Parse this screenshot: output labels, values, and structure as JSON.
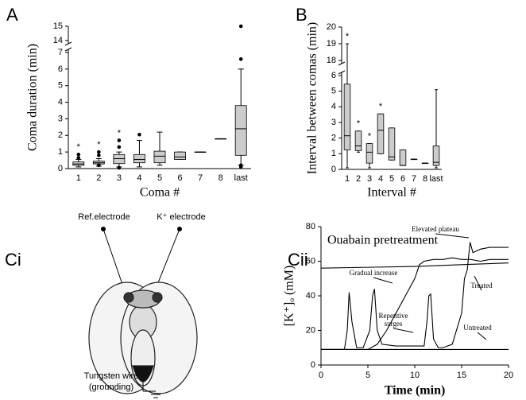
{
  "chart_data": [
    {
      "type": "box",
      "panel": "A",
      "ylabel": "Coma duration (min)",
      "xlabel": "Coma #",
      "categories": [
        "1",
        "2",
        "3",
        "4",
        "5",
        "6",
        "7",
        "8",
        "last"
      ],
      "boxes": [
        {
          "min": 0.1,
          "q1": 0.2,
          "median": 0.28,
          "q3": 0.4,
          "max": 0.55,
          "outliers": [
            0.85,
            0.65
          ]
        },
        {
          "min": 0.15,
          "q1": 0.28,
          "median": 0.35,
          "q3": 0.45,
          "max": 0.6,
          "outliers": [
            1.0,
            0.8,
            0.2
          ]
        },
        {
          "min": 0.1,
          "q1": 0.3,
          "median": 0.6,
          "q3": 0.85,
          "max": 1.0,
          "outliers": [
            1.7,
            1.3,
            0.05
          ]
        },
        {
          "min": 0.1,
          "q1": 0.35,
          "median": 0.55,
          "q3": 0.85,
          "max": 1.7,
          "outliers": [
            2.05
          ]
        },
        {
          "min": 0.2,
          "q1": 0.35,
          "median": 0.75,
          "q3": 1.05,
          "max": 2.2,
          "outliers": []
        },
        {
          "min": 0.55,
          "q1": 0.55,
          "median": 0.7,
          "q3": 1.0,
          "max": 1.0,
          "outliers": []
        },
        {
          "min": 1.0,
          "q1": 1.0,
          "median": 1.0,
          "q3": 1.0,
          "max": 1.0,
          "outliers": []
        },
        {
          "min": 1.8,
          "q1": 1.8,
          "median": 1.8,
          "q3": 1.8,
          "max": 1.8,
          "outliers": []
        },
        {
          "min": 0.2,
          "q1": 0.8,
          "median": 2.4,
          "q3": 3.8,
          "max": 6.0,
          "outliers": [
            15,
            6.6,
            0.2,
            0.1
          ]
        }
      ],
      "significance": [
        "*",
        "*",
        "*",
        null,
        null,
        null,
        null,
        null,
        null
      ],
      "color": "#cccccc",
      "ylim": [
        0,
        15
      ],
      "ybreak": [
        7,
        14
      ],
      "yticks": [
        0,
        1,
        2,
        3,
        4,
        5,
        6,
        7,
        14,
        15
      ]
    },
    {
      "type": "box",
      "panel": "B",
      "ylabel": "Interval between comas (min)",
      "xlabel": "Interval #",
      "categories": [
        "1",
        "2",
        "3",
        "4",
        "5",
        "6",
        "7",
        "8",
        "last"
      ],
      "boxes": [
        {
          "min": 0.1,
          "q1": 1.25,
          "median": 2.15,
          "q3": 5.45,
          "max": 19.0,
          "outliers": []
        },
        {
          "min": 1.1,
          "q1": 1.2,
          "median": 1.5,
          "q3": 2.45,
          "max": 2.45,
          "outliers": []
        },
        {
          "min": 0.1,
          "q1": 0.4,
          "median": 1.1,
          "q3": 1.65,
          "max": 1.65,
          "outliers": []
        },
        {
          "min": 1.0,
          "q1": 1.0,
          "median": 2.5,
          "q3": 3.55,
          "max": 3.55,
          "outliers": []
        },
        {
          "min": 0.6,
          "q1": 0.6,
          "median": 0.8,
          "q3": 2.65,
          "max": 2.65,
          "outliers": []
        },
        {
          "min": 0.25,
          "q1": 0.25,
          "median": 0.25,
          "q3": 1.25,
          "max": 1.25,
          "outliers": []
        },
        {
          "min": 0.65,
          "q1": 0.65,
          "median": 0.65,
          "q3": 0.65,
          "max": 0.65,
          "outliers": []
        },
        {
          "min": 0.4,
          "q1": 0.4,
          "median": 0.4,
          "q3": 0.4,
          "max": 0.4,
          "outliers": []
        },
        {
          "min": 0.1,
          "q1": 0.25,
          "median": 0.45,
          "q3": 1.5,
          "max": 5.1,
          "outliers": []
        }
      ],
      "significance": [
        "*",
        "*",
        "*",
        "*",
        null,
        null,
        null,
        null,
        null
      ],
      "color": "#cccccc",
      "ylim": [
        0,
        20
      ],
      "ybreak": [
        6,
        18
      ],
      "yticks": [
        0,
        1,
        2,
        3,
        4,
        5,
        6,
        18,
        19,
        20
      ]
    },
    {
      "type": "line",
      "panel": "Cii",
      "title": "Ouabain pretreatment",
      "xlabel": "Time (min)",
      "ylabel": "[K⁺]ₒ (mM)",
      "xlim": [
        0,
        20
      ],
      "xticks": [
        0,
        5,
        10,
        15,
        20
      ],
      "ylim": [
        0,
        80
      ],
      "yticks": [
        0,
        20,
        40,
        60,
        80
      ],
      "annotations": [
        "Elevated plateau",
        "Gradual increase",
        "Treated",
        [
          "Repetitive",
          "surges"
        ],
        "Untreated"
      ],
      "series": [
        {
          "color": "#000000",
          "x": [
            0,
            5,
            10,
            15,
            20
          ],
          "values": [
            56,
            56.5,
            57,
            58,
            59
          ]
        },
        {
          "color": "#000000",
          "x": [
            0,
            4,
            5,
            6,
            7,
            8,
            9,
            10,
            10.5,
            11,
            12,
            13,
            14,
            15,
            16,
            17,
            18,
            19,
            20
          ],
          "values": [
            9,
            9,
            9,
            12,
            20,
            30,
            40,
            50,
            58,
            60,
            61,
            61,
            62,
            61,
            61,
            60,
            61,
            61,
            61
          ]
        },
        {
          "color": "#000000",
          "x": [
            0,
            2.5,
            2.8,
            3.0,
            3.3,
            3.8,
            4.5,
            5.2,
            5.5,
            5.7,
            6.0,
            6.5,
            8,
            10,
            11,
            11.3,
            11.5,
            11.7,
            12,
            12.5,
            13,
            14,
            15,
            15.3,
            15.6,
            15.9,
            16.2,
            16.6,
            17,
            18,
            19,
            20
          ],
          "values": [
            9,
            9,
            20,
            42,
            25,
            10,
            10,
            20,
            40,
            44,
            20,
            12,
            11,
            11,
            11,
            25,
            40,
            41,
            15,
            10,
            10,
            12,
            30,
            50,
            55,
            71,
            65,
            66,
            67,
            68,
            68,
            68
          ]
        },
        {
          "color": "#000000",
          "x": [
            0,
            5,
            10,
            15,
            20
          ],
          "values": [
            9,
            9,
            9,
            9,
            9
          ]
        }
      ]
    }
  ],
  "diagram": {
    "panel": "Ci",
    "ref_label": "Ref.electrode",
    "k_label": "K⁺ electrode",
    "ground_label": [
      "Tungsten wire",
      "(grounding)"
    ]
  }
}
